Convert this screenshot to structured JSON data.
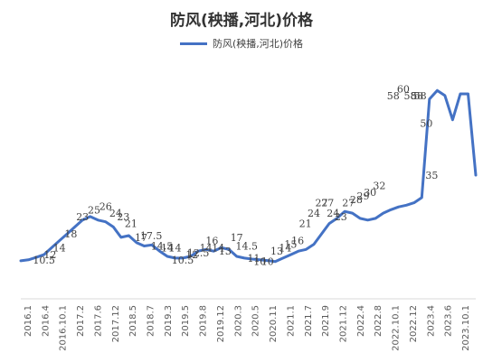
{
  "chart_data": {
    "type": "line",
    "title": "防风(秧播,河北)价格",
    "color": "#4472C4",
    "categories": [
      "2016.1",
      "2016.4",
      "2016.10.1",
      "2017.2",
      "2017.6",
      "2017.12",
      "2018.5",
      "2018.7",
      "2019.3",
      "2019.5",
      "2019.8",
      "2019.12",
      "2020.3",
      "2020.5",
      "2020.11",
      "2021.1",
      "2021.7",
      "2021.9",
      "2021.12",
      "2022.4",
      "2022.8",
      "2022.10.1",
      "2022.12",
      "2023.4",
      "2023.6",
      "2023.10.1"
    ],
    "series": [
      {
        "name": "防风(秧播,河北)价格",
        "labels": [
          "10.5",
          "12",
          "14",
          "18",
          "23",
          "25",
          "26",
          "24",
          "23",
          "21",
          "17",
          "17.5",
          "14.5",
          "14",
          "14",
          "10.5",
          "12",
          "12.5",
          "14",
          "16",
          "14",
          "13",
          "17",
          "14.5",
          "11",
          "10",
          "10",
          "13",
          "14",
          "15",
          "16",
          "21",
          "24",
          "27",
          "27",
          "24",
          "23",
          "27",
          "28",
          "29",
          "30",
          "32",
          "58",
          "60",
          "58",
          "58",
          "58",
          "50",
          "35"
        ],
        "label_points": [
          [
            3,
            10.5
          ],
          [
            3.8,
            12
          ],
          [
            5,
            14
          ],
          [
            6.5,
            18
          ],
          [
            8,
            23
          ],
          [
            9.5,
            25
          ],
          [
            11,
            26
          ],
          [
            12.3,
            24
          ],
          [
            13.3,
            23
          ],
          [
            14.3,
            21
          ],
          [
            15.6,
            17
          ],
          [
            16.9,
            17.5
          ],
          [
            18.3,
            14.5
          ],
          [
            19,
            14
          ],
          [
            20,
            14
          ],
          [
            21,
            10.5
          ],
          [
            22.2,
            12
          ],
          [
            23,
            12.5
          ],
          [
            24,
            14
          ],
          [
            24.8,
            16
          ],
          [
            25.6,
            14
          ],
          [
            26.5,
            13
          ],
          [
            28,
            17
          ],
          [
            29.3,
            14.5
          ],
          [
            30.2,
            11
          ],
          [
            31,
            10
          ],
          [
            32,
            10
          ],
          [
            33.2,
            13
          ],
          [
            34.3,
            14
          ],
          [
            35,
            15
          ],
          [
            35.9,
            16
          ],
          [
            36.9,
            21
          ],
          [
            38,
            24
          ],
          [
            39,
            27
          ],
          [
            39.8,
            27
          ],
          [
            40.5,
            24
          ],
          [
            41.5,
            23
          ],
          [
            42.5,
            27
          ],
          [
            43.5,
            28
          ],
          [
            44.4,
            29
          ],
          [
            45.3,
            30
          ],
          [
            46.5,
            32
          ],
          [
            48.3,
            58
          ],
          [
            49.6,
            60
          ],
          [
            50.5,
            58
          ],
          [
            51.4,
            58
          ],
          [
            51.8,
            58
          ],
          [
            52.6,
            50
          ],
          [
            53.3,
            35
          ]
        ],
        "line_points": [
          [
            0,
            10.2
          ],
          [
            1,
            10.5
          ],
          [
            2,
            11.2
          ],
          [
            3,
            12
          ],
          [
            4,
            14
          ],
          [
            5,
            16
          ],
          [
            6,
            18
          ],
          [
            7,
            20
          ],
          [
            8,
            22
          ],
          [
            9,
            23
          ],
          [
            10,
            22
          ],
          [
            11,
            21.5
          ],
          [
            12,
            20
          ],
          [
            13,
            17
          ],
          [
            14,
            17.5
          ],
          [
            15,
            15.5
          ],
          [
            16,
            14.5
          ],
          [
            17,
            14.8
          ],
          [
            18,
            13
          ],
          [
            19,
            11.5
          ],
          [
            20,
            11
          ],
          [
            21,
            11
          ],
          [
            22,
            11.5
          ],
          [
            23,
            13
          ],
          [
            24,
            13.5
          ],
          [
            25,
            13
          ],
          [
            26,
            14
          ],
          [
            27,
            13.5
          ],
          [
            28,
            11.5
          ],
          [
            29,
            11
          ],
          [
            30,
            10.7
          ],
          [
            31,
            10.5
          ],
          [
            32,
            10.3
          ],
          [
            33,
            10
          ],
          [
            34,
            11
          ],
          [
            35,
            12
          ],
          [
            36,
            13
          ],
          [
            37,
            13.5
          ],
          [
            38,
            15
          ],
          [
            39,
            18
          ],
          [
            40,
            21
          ],
          [
            41,
            22.5
          ],
          [
            42,
            24.5
          ],
          [
            43,
            24
          ],
          [
            44,
            22.5
          ],
          [
            45,
            22
          ],
          [
            46,
            22.5
          ],
          [
            47,
            24
          ],
          [
            48,
            25
          ],
          [
            49,
            25.8
          ],
          [
            50,
            26.3
          ],
          [
            51,
            27
          ],
          [
            52,
            28.5
          ],
          [
            53,
            57
          ],
          [
            54,
            59.5
          ],
          [
            55,
            58
          ],
          [
            56,
            51
          ],
          [
            57,
            58.5
          ],
          [
            58,
            58.5
          ],
          [
            59,
            35
          ]
        ],
        "x_range": [
          0,
          59
        ],
        "y_range": [
          0,
          70
        ]
      }
    ],
    "legend": "top-center",
    "grid": false
  }
}
